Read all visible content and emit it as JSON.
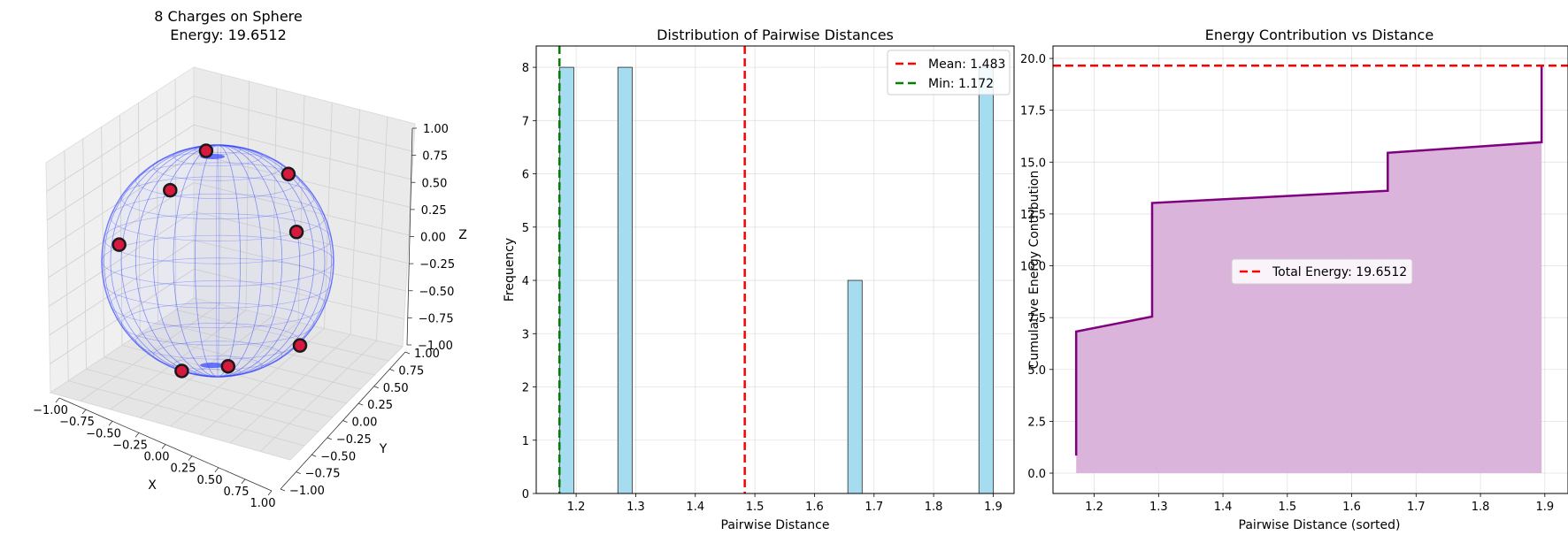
{
  "chart_data": [
    {
      "type": "scatter3d",
      "title": "8 Charges on Sphere",
      "subtitle": "Energy: 19.6512",
      "xlabel": "X",
      "ylabel": "Y",
      "zlabel": "Z",
      "xlim": [
        -1,
        1
      ],
      "ylim": [
        -1,
        1
      ],
      "zlim": [
        -1,
        1
      ],
      "x_ticks": [
        "−1.00",
        "−0.75",
        "−0.50",
        "−0.25",
        "0.00",
        "0.25",
        "0.50",
        "0.75",
        "1.00"
      ],
      "y_ticks": [
        "−1.00",
        "−0.75",
        "−0.50",
        "−0.25",
        "0.00",
        "0.25",
        "0.50",
        "0.75",
        "1.00"
      ],
      "z_ticks": [
        "−1.00",
        "−0.75",
        "−0.50",
        "−0.25",
        "0.00",
        "0.25",
        "0.50",
        "0.75",
        "1.00"
      ],
      "sphere_color": "#3344ff",
      "charge_color": "#d6193d",
      "charges_projected": [
        [
          -0.1,
          0.95
        ],
        [
          0.61,
          0.75
        ],
        [
          -0.41,
          0.61
        ],
        [
          0.68,
          0.25
        ],
        [
          -0.85,
          0.14
        ],
        [
          0.71,
          -0.73
        ],
        [
          -0.31,
          -0.95
        ],
        [
          0.09,
          -0.91
        ]
      ]
    },
    {
      "type": "histogram",
      "title": "Distribution of Pairwise Distances",
      "xlabel": "Pairwise Distance",
      "ylabel": "Frequency",
      "xlim": [
        1.133,
        1.935
      ],
      "ylim": [
        0,
        8.4
      ],
      "x_ticks": [
        1.2,
        1.3,
        1.4,
        1.5,
        1.6,
        1.7,
        1.8,
        1.9
      ],
      "x_tick_labels": [
        "1.2",
        "1.3",
        "1.4",
        "1.5",
        "1.6",
        "1.7",
        "1.8",
        "1.9"
      ],
      "y_ticks": [
        0,
        1,
        2,
        3,
        4,
        5,
        6,
        7,
        8
      ],
      "y_tick_labels": [
        "0",
        "1",
        "2",
        "3",
        "4",
        "5",
        "6",
        "7",
        "8"
      ],
      "bins": [
        [
          1.172,
          1.196
        ],
        [
          1.27,
          1.294
        ],
        [
          1.656,
          1.68
        ],
        [
          1.876,
          1.9
        ]
      ],
      "values": [
        8,
        8,
        4,
        8
      ],
      "bar_color": "#a6dcef",
      "mean": 1.483,
      "min": 1.172,
      "legend": [
        "Mean: 1.483",
        "Min: 1.172"
      ],
      "legend_position": "top-right"
    },
    {
      "type": "area",
      "title": "Energy Contribution vs Distance",
      "xlabel": "Pairwise Distance (sorted)",
      "ylabel": "Cumulative Energy Contribution",
      "xlim": [
        1.136,
        1.936
      ],
      "ylim": [
        -0.98,
        20.6
      ],
      "x_ticks": [
        1.2,
        1.3,
        1.4,
        1.5,
        1.6,
        1.7,
        1.8,
        1.9
      ],
      "x_tick_labels": [
        "1.2",
        "1.3",
        "1.4",
        "1.5",
        "1.6",
        "1.7",
        "1.8",
        "1.9"
      ],
      "y_ticks": [
        0,
        2.5,
        5,
        7.5,
        10,
        12.5,
        15,
        17.5,
        20
      ],
      "y_tick_labels": [
        "0.0",
        "2.5",
        "5.0",
        "7.5",
        "10.0",
        "12.5",
        "15.0",
        "17.5",
        "20.0"
      ],
      "x": [
        1.172,
        1.172,
        1.29,
        1.29,
        1.656,
        1.656,
        1.895,
        1.895
      ],
      "y": [
        0.85,
        6.83,
        7.55,
        13.03,
        13.62,
        15.45,
        15.96,
        19.65
      ],
      "line_color": "#800080",
      "fill_color": "#d8b0d8",
      "total_energy": 19.6512,
      "legend": [
        "Total Energy: 19.6512"
      ],
      "legend_position": "center"
    }
  ]
}
